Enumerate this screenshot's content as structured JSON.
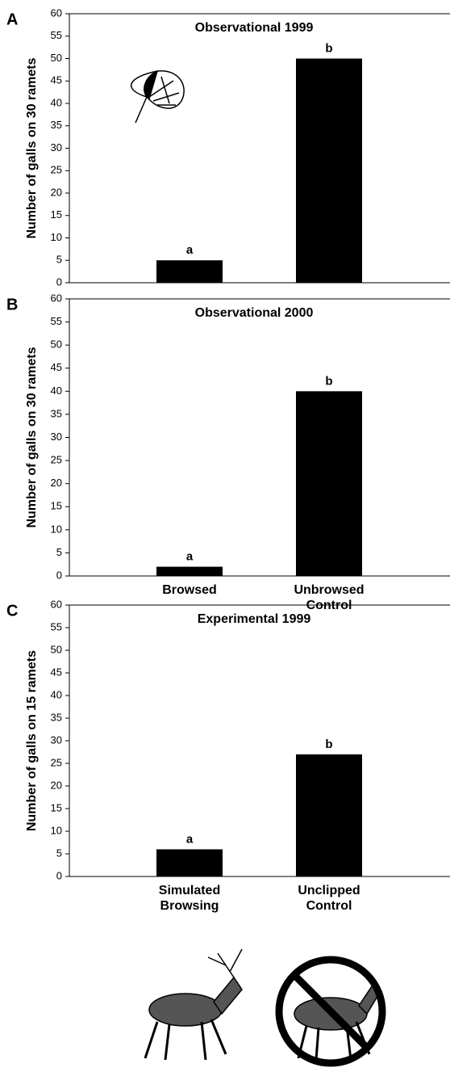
{
  "chart_data": [
    {
      "type": "bar",
      "panel": "A",
      "title": "Observational 1999",
      "y_label": "Number of galls on 30 ramets",
      "categories": [
        null,
        null
      ],
      "values": [
        5,
        50
      ],
      "bar_labels": [
        "a",
        "b"
      ],
      "color": "#000000",
      "ylim": [
        0,
        60
      ],
      "yticks": [
        0,
        5,
        10,
        15,
        20,
        25,
        30,
        35,
        40,
        45,
        50,
        55,
        60
      ]
    },
    {
      "type": "bar",
      "panel": "B",
      "title": "Observational 2000",
      "y_label": "Number of galls on 30 ramets",
      "categories": [
        "Browsed",
        "Unbrowsed Control"
      ],
      "values": [
        2,
        40
      ],
      "bar_labels": [
        "a",
        "b"
      ],
      "color": "#000000",
      "ylim": [
        0,
        60
      ],
      "yticks": [
        0,
        5,
        10,
        15,
        20,
        25,
        30,
        35,
        40,
        45,
        50,
        55,
        60
      ]
    },
    {
      "type": "bar",
      "panel": "C",
      "title": "Experimental 1999",
      "y_label": "Number of galls on 15 ramets",
      "categories": [
        "Simulated Browsing",
        "Unclipped Control"
      ],
      "values": [
        6,
        27
      ],
      "bar_labels": [
        "a",
        "b"
      ],
      "color": "#000000",
      "ylim": [
        0,
        60
      ],
      "yticks": [
        0,
        5,
        10,
        15,
        20,
        25,
        30,
        35,
        40,
        45,
        50,
        55,
        60
      ]
    }
  ]
}
